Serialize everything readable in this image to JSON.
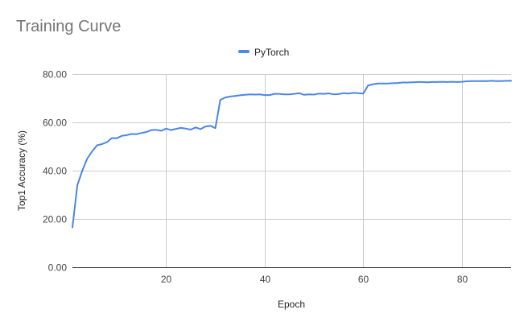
{
  "chart_data": {
    "type": "line",
    "title": "Training Curve",
    "xlabel": "Epoch",
    "ylabel": "Top1 Accuracy (%)",
    "xlim": [
      1,
      90
    ],
    "ylim": [
      0,
      80
    ],
    "x_ticks": [
      20,
      40,
      60,
      80
    ],
    "y_ticks": [
      0,
      20,
      40,
      60,
      80
    ],
    "y_tick_labels": [
      "0.00",
      "20.00",
      "40.00",
      "60.00",
      "80.00"
    ],
    "grid": true,
    "legend_position": "top-center",
    "series": [
      {
        "name": "PyTorch",
        "color": "#4a86e8",
        "x": [
          1,
          2,
          3,
          4,
          5,
          6,
          7,
          8,
          9,
          10,
          11,
          12,
          13,
          14,
          15,
          16,
          17,
          18,
          19,
          20,
          21,
          22,
          23,
          24,
          25,
          26,
          27,
          28,
          29,
          30,
          31,
          32,
          33,
          34,
          35,
          36,
          37,
          38,
          39,
          40,
          41,
          42,
          43,
          44,
          45,
          46,
          47,
          48,
          49,
          50,
          51,
          52,
          53,
          54,
          55,
          56,
          57,
          58,
          59,
          60,
          61,
          62,
          63,
          64,
          65,
          66,
          67,
          68,
          69,
          70,
          71,
          72,
          73,
          74,
          75,
          76,
          77,
          78,
          79,
          80,
          81,
          82,
          83,
          84,
          85,
          86,
          87,
          88,
          89,
          90
        ],
        "values": [
          16.5,
          34.0,
          40.0,
          45.0,
          48.0,
          50.5,
          51.0,
          51.8,
          53.5,
          53.4,
          54.4,
          54.7,
          55.2,
          55.1,
          55.6,
          56.0,
          56.8,
          56.9,
          56.5,
          57.4,
          56.8,
          57.3,
          57.7,
          57.4,
          57.0,
          57.9,
          57.2,
          58.3,
          58.6,
          57.6,
          69.3,
          70.3,
          70.7,
          70.9,
          71.2,
          71.4,
          71.6,
          71.5,
          71.6,
          71.3,
          71.3,
          71.8,
          71.8,
          71.6,
          71.6,
          71.8,
          72.1,
          71.4,
          71.6,
          71.5,
          71.9,
          71.8,
          72.0,
          71.6,
          71.7,
          72.1,
          71.9,
          72.2,
          72.1,
          71.9,
          75.3,
          75.8,
          76.1,
          76.1,
          76.1,
          76.2,
          76.3,
          76.5,
          76.5,
          76.6,
          76.7,
          76.7,
          76.6,
          76.7,
          76.7,
          76.8,
          76.7,
          76.8,
          76.7,
          76.8,
          77.0,
          77.1,
          77.1,
          77.1,
          77.1,
          77.2,
          77.1,
          77.1,
          77.2,
          77.2
        ]
      }
    ]
  }
}
